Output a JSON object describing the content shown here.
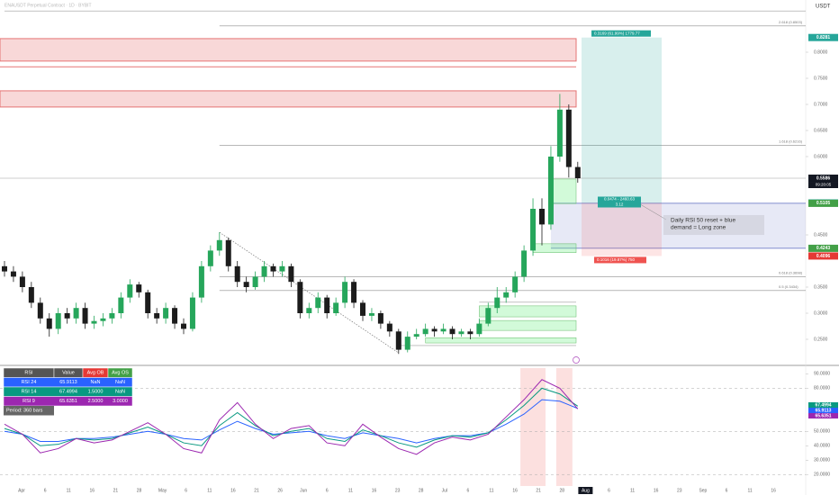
{
  "header": {
    "title": "ENAUSDT Perpetual Contract · 1D · BYBIT",
    "currency": "USDT",
    "countdown": "09:20:05"
  },
  "chart_data": [
    {
      "type": "candlestick",
      "up_color": "#26a65b",
      "down_color": "#1c1c1c",
      "ylim": [
        0.2,
        0.9
      ],
      "yticks": [
        {
          "value": 0.25,
          "label": "0.2500"
        },
        {
          "value": 0.3,
          "label": "0.3000"
        },
        {
          "value": 0.35,
          "label": "0.3500"
        },
        {
          "value": 0.45,
          "label": "0.4500"
        },
        {
          "value": 0.6,
          "label": "0.6000"
        },
        {
          "value": 0.65,
          "label": "0.6500"
        },
        {
          "value": 0.7,
          "label": "0.7000"
        },
        {
          "value": 0.75,
          "label": "0.7500"
        },
        {
          "value": 0.8,
          "label": "0.8000"
        }
      ],
      "candles": [
        [
          0.39,
          0.4,
          0.37,
          0.38
        ],
        [
          0.38,
          0.39,
          0.36,
          0.37
        ],
        [
          0.37,
          0.38,
          0.34,
          0.35
        ],
        [
          0.35,
          0.36,
          0.31,
          0.32
        ],
        [
          0.32,
          0.33,
          0.28,
          0.29
        ],
        [
          0.29,
          0.3,
          0.255,
          0.27
        ],
        [
          0.27,
          0.31,
          0.26,
          0.3
        ],
        [
          0.3,
          0.31,
          0.28,
          0.29
        ],
        [
          0.29,
          0.32,
          0.28,
          0.31
        ],
        [
          0.31,
          0.32,
          0.27,
          0.28
        ],
        [
          0.28,
          0.295,
          0.27,
          0.285
        ],
        [
          0.285,
          0.3,
          0.275,
          0.29
        ],
        [
          0.29,
          0.31,
          0.28,
          0.3
        ],
        [
          0.3,
          0.34,
          0.29,
          0.33
        ],
        [
          0.33,
          0.365,
          0.32,
          0.355
        ],
        [
          0.355,
          0.36,
          0.33,
          0.34
        ],
        [
          0.34,
          0.345,
          0.29,
          0.3
        ],
        [
          0.3,
          0.31,
          0.28,
          0.29
        ],
        [
          0.29,
          0.32,
          0.28,
          0.31
        ],
        [
          0.31,
          0.315,
          0.27,
          0.28
        ],
        [
          0.28,
          0.29,
          0.26,
          0.27
        ],
        [
          0.27,
          0.34,
          0.265,
          0.33
        ],
        [
          0.33,
          0.4,
          0.32,
          0.39
        ],
        [
          0.39,
          0.43,
          0.38,
          0.42
        ],
        [
          0.42,
          0.455,
          0.41,
          0.44
        ],
        [
          0.44,
          0.445,
          0.38,
          0.39
        ],
        [
          0.39,
          0.4,
          0.35,
          0.36
        ],
        [
          0.36,
          0.37,
          0.34,
          0.35
        ],
        [
          0.35,
          0.38,
          0.345,
          0.37
        ],
        [
          0.37,
          0.4,
          0.36,
          0.39
        ],
        [
          0.39,
          0.395,
          0.37,
          0.38
        ],
        [
          0.38,
          0.4,
          0.37,
          0.39
        ],
        [
          0.39,
          0.395,
          0.35,
          0.36
        ],
        [
          0.36,
          0.365,
          0.29,
          0.3
        ],
        [
          0.3,
          0.32,
          0.29,
          0.31
        ],
        [
          0.31,
          0.34,
          0.3,
          0.33
        ],
        [
          0.33,
          0.335,
          0.29,
          0.3
        ],
        [
          0.3,
          0.33,
          0.295,
          0.32
        ],
        [
          0.32,
          0.37,
          0.31,
          0.36
        ],
        [
          0.36,
          0.365,
          0.31,
          0.32
        ],
        [
          0.32,
          0.325,
          0.285,
          0.295
        ],
        [
          0.295,
          0.31,
          0.285,
          0.3
        ],
        [
          0.3,
          0.305,
          0.27,
          0.28
        ],
        [
          0.28,
          0.285,
          0.255,
          0.265
        ],
        [
          0.265,
          0.27,
          0.222,
          0.23
        ],
        [
          0.23,
          0.265,
          0.225,
          0.255
        ],
        [
          0.255,
          0.27,
          0.25,
          0.26
        ],
        [
          0.26,
          0.28,
          0.255,
          0.27
        ],
        [
          0.27,
          0.275,
          0.255,
          0.265
        ],
        [
          0.265,
          0.28,
          0.26,
          0.27
        ],
        [
          0.27,
          0.275,
          0.25,
          0.26
        ],
        [
          0.26,
          0.27,
          0.255,
          0.265
        ],
        [
          0.265,
          0.27,
          0.25,
          0.26
        ],
        [
          0.26,
          0.29,
          0.255,
          0.28
        ],
        [
          0.28,
          0.32,
          0.275,
          0.31
        ],
        [
          0.31,
          0.35,
          0.3,
          0.33
        ],
        [
          0.33,
          0.35,
          0.32,
          0.34
        ],
        [
          0.34,
          0.38,
          0.33,
          0.37
        ],
        [
          0.37,
          0.43,
          0.36,
          0.42
        ],
        [
          0.42,
          0.52,
          0.41,
          0.5
        ],
        [
          0.5,
          0.52,
          0.43,
          0.47
        ],
        [
          0.47,
          0.62,
          0.46,
          0.6
        ],
        [
          0.6,
          0.72,
          0.59,
          0.69
        ],
        [
          0.69,
          0.7,
          0.56,
          0.58
        ],
        [
          0.58,
          0.59,
          0.55,
          0.5586
        ]
      ],
      "supply_zones": [
        {
          "top": 0.826,
          "bottom": 0.783
        },
        {
          "top": 0.726,
          "bottom": 0.695
        }
      ],
      "supply_line": 0.772,
      "green_boxes": [
        {
          "top": 0.557,
          "bottom": 0.51,
          "from": 61
        },
        {
          "top": 0.433,
          "bottom": 0.416,
          "from": 59
        },
        {
          "top": 0.314,
          "bottom": 0.293,
          "from": 53
        },
        {
          "top": 0.286,
          "bottom": 0.267,
          "from": 53
        },
        {
          "top": 0.253,
          "bottom": 0.243,
          "from": 47
        }
      ],
      "levels": [
        {
          "value": 0.879,
          "from": 0
        },
        {
          "value": 0.321,
          "from": 53
        },
        {
          "value": 0.238,
          "from": 44
        }
      ],
      "fib_levels": [
        {
          "value": 0.8503,
          "label": "2.618 (0.8503)"
        },
        {
          "value": 0.6216,
          "label": "1.618 (0.6216)"
        },
        {
          "value": 0.3698,
          "label": "0.618 (0.3698)"
        },
        {
          "value": 0.3434,
          "label": "0.5 (0.3434)"
        }
      ],
      "fib_from": 24,
      "trendline": [
        [
          24,
          0.455
        ],
        [
          44,
          0.224
        ]
      ],
      "demand_zone": {
        "top": 0.5105,
        "bottom": 0.4243,
        "from": 61
      },
      "position": {
        "target": 0.8281,
        "entry": 0.5112,
        "stop": 0.4096,
        "target_label": "0.3169 (61.99%) 1779.77",
        "entry_label": [
          "0.0474 - 2460.63",
          "3.12"
        ],
        "stop_label": "0.1016 (19.87%) 750"
      },
      "annotation": [
        "Daily RSI 50 reset + blue",
        "demand = Long zone"
      ]
    },
    {
      "type": "line",
      "ylim": [
        12,
        94
      ],
      "yticks": [
        {
          "value": 90,
          "label": "90.0000"
        },
        {
          "value": 80,
          "label": "80.0000"
        },
        {
          "value": 50,
          "label": "50.0000"
        },
        {
          "value": 40,
          "label": "40.0000"
        },
        {
          "value": 30,
          "label": "30.0000"
        },
        {
          "value": 20,
          "label": "20.0000"
        }
      ],
      "dashed_levels": [
        80,
        50,
        20
      ],
      "overbought_zones": [
        [
          58,
          60
        ],
        [
          62,
          63
        ]
      ],
      "x": [
        0,
        2,
        4,
        6,
        8,
        10,
        12,
        14,
        16,
        18,
        20,
        22,
        24,
        26,
        28,
        30,
        32,
        34,
        36,
        38,
        40,
        42,
        44,
        46,
        48,
        50,
        52,
        54,
        56,
        58,
        60,
        62,
        64
      ],
      "series": [
        {
          "name": "RSI 24",
          "color": "#2962ff",
          "values": [
            50,
            48,
            43,
            43,
            45,
            45,
            46,
            48,
            50,
            48,
            45,
            44,
            51,
            57,
            52,
            48,
            49,
            50,
            47,
            45,
            49,
            47,
            45,
            42,
            45,
            47,
            47,
            49,
            55,
            62,
            72,
            71,
            65.9113
          ]
        },
        {
          "name": "RSI 14",
          "color": "#089981",
          "values": [
            52,
            48,
            40,
            41,
            45,
            44,
            45,
            49,
            53,
            48,
            42,
            40,
            54,
            63,
            54,
            47,
            50,
            52,
            45,
            43,
            51,
            47,
            42,
            39,
            44,
            47,
            46,
            49,
            58,
            68,
            80,
            76,
            67.4994
          ]
        },
        {
          "name": "RSI 9",
          "color": "#9c27b0",
          "values": [
            55,
            48,
            35,
            38,
            45,
            42,
            44,
            50,
            56,
            48,
            38,
            35,
            58,
            70,
            55,
            45,
            52,
            54,
            42,
            40,
            55,
            46,
            38,
            34,
            42,
            46,
            44,
            48,
            60,
            72,
            86,
            80,
            65.6351
          ]
        }
      ]
    }
  ],
  "rsi_table": {
    "header": [
      "RSI",
      "Value",
      "Avg OB",
      "Avg OS"
    ],
    "rows": [
      [
        "NaN",
        "NaN"
      ],
      [
        "1.5000",
        "NaN"
      ],
      [
        "2.5000",
        "3.0000"
      ]
    ],
    "footer": "Period: 360 bars"
  },
  "time_axis": {
    "labels": [
      "Apr",
      "6",
      "11",
      "16",
      "21",
      "28",
      "May",
      "6",
      "11",
      "16",
      "21",
      "26",
      "Jun",
      "6",
      "11",
      "16",
      "23",
      "28",
      "Jul",
      "6",
      "11",
      "16",
      "21",
      "28",
      "Aug",
      "6",
      "11",
      "16",
      "23",
      "Sep",
      "6",
      "11",
      "16"
    ],
    "highlight": 24
  }
}
